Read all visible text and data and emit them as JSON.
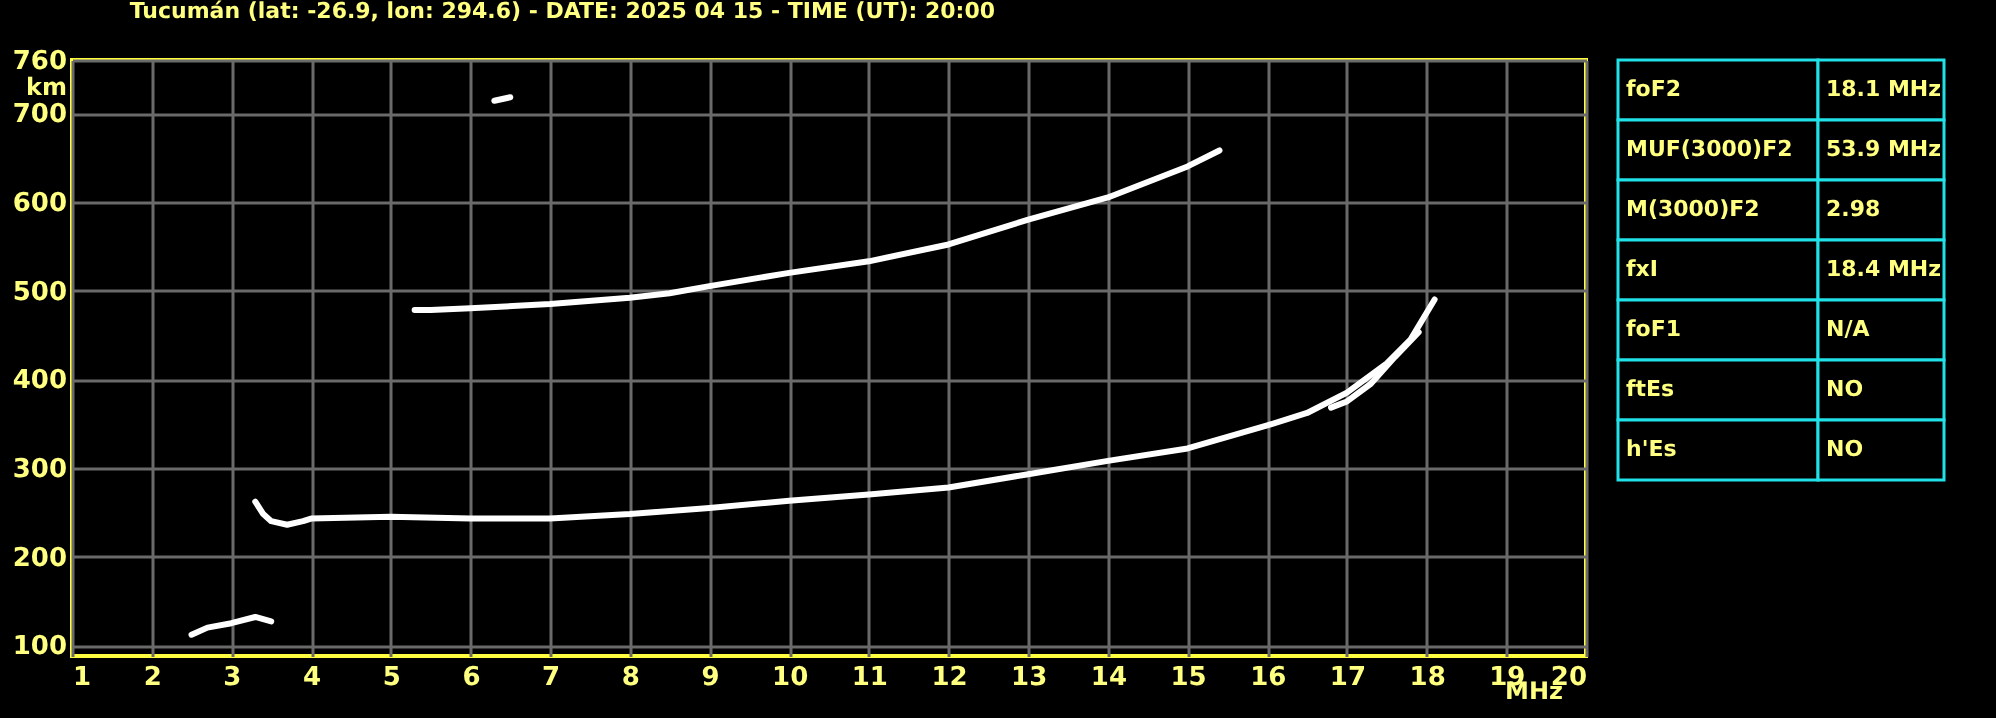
{
  "chart_data": [
    {
      "type": "line",
      "title": "Tucumán (lat: -26.9, lon: 294.6) - DATE: 2025 04 15 - TIME (UT): 20:00",
      "xlabel": "MHz",
      "ylabel": "km",
      "xlim": [
        1,
        20
      ],
      "ylim": [
        88,
        760
      ],
      "xticks": [
        1,
        2,
        3,
        4,
        5,
        6,
        7,
        8,
        9,
        10,
        11,
        12,
        13,
        14,
        15,
        16,
        17,
        18,
        19,
        20
      ],
      "yticks": [
        100,
        200,
        300,
        400,
        500,
        600,
        700,
        760
      ],
      "grid": true,
      "legend": false,
      "marker": "none",
      "line_style": "solid",
      "series": [
        {
          "color": "#ffffff",
          "x": [
            3.3,
            3.4,
            3.5,
            3.7,
            3.9,
            4,
            5,
            6,
            7,
            8,
            9,
            10,
            11,
            12,
            13,
            14,
            15,
            16,
            16.5,
            17,
            17.5,
            17.8,
            18.1
          ],
          "values": [
            262,
            248,
            240,
            236,
            240,
            243,
            245,
            243,
            243,
            248,
            255,
            263,
            270,
            278,
            293,
            308,
            322,
            348,
            362,
            385,
            418,
            445,
            490
          ]
        },
        {
          "color": "#ffffff",
          "x": [
            16.8,
            17,
            17.3,
            17.6,
            17.9
          ],
          "values": [
            368,
            375,
            395,
            425,
            453
          ]
        },
        {
          "color": "#ffffff",
          "x": [
            5.3,
            5.5,
            6,
            7,
            8,
            8.5,
            9,
            10,
            11,
            12,
            13,
            14,
            15,
            15.4
          ],
          "values": [
            478,
            478,
            480,
            485,
            492,
            497,
            505,
            520,
            533,
            552,
            580,
            605,
            640,
            658
          ]
        },
        {
          "color": "#ffffff",
          "x": [
            2.5,
            2.7,
            3.0,
            3.3,
            3.5
          ],
          "values": [
            112,
            120,
            125,
            132,
            127
          ]
        },
        {
          "color": "#ffffff",
          "x": [
            6.3,
            6.5
          ],
          "values": [
            714,
            718
          ]
        }
      ]
    },
    {
      "type": "other",
      "annotations": [
        "foF2",
        "18.1 MHz",
        "MUF(3000)F2",
        "53.9 MHz",
        "M(3000)F2",
        "2.98",
        "fxI",
        "18.4 MHz",
        "foF1",
        "N/A",
        "ftEs",
        "NO",
        "h'Es",
        "NO"
      ]
    }
  ]
}
